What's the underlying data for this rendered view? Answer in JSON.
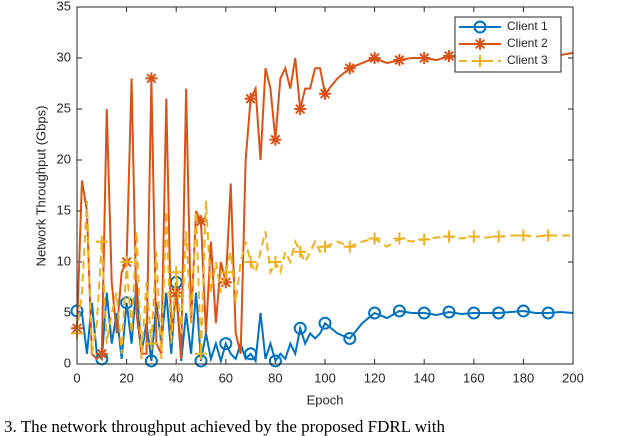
{
  "chart_data": {
    "type": "line",
    "x_label": "Epoch",
    "y_label": "Network Throughput (Gbps)",
    "caption": "3.  The network throughput achieved by the proposed FDRL with",
    "x": [
      0,
      2,
      4,
      6,
      8,
      10,
      12,
      14,
      16,
      18,
      20,
      22,
      24,
      26,
      28,
      30,
      32,
      34,
      36,
      38,
      40,
      42,
      44,
      46,
      48,
      50,
      52,
      54,
      56,
      58,
      60,
      62,
      64,
      66,
      68,
      70,
      72,
      74,
      76,
      78,
      80,
      82,
      84,
      86,
      88,
      90,
      92,
      94,
      96,
      98,
      100,
      105,
      110,
      115,
      120,
      125,
      130,
      135,
      140,
      145,
      150,
      155,
      160,
      165,
      170,
      175,
      180,
      185,
      190,
      195,
      200
    ],
    "series": [
      {
        "name": "Client 1",
        "color": "#0072bd",
        "marker": "circle",
        "dashed": false,
        "values": [
          5.2,
          5,
          1,
          6,
          1,
          0.5,
          7,
          2,
          5,
          0.5,
          6,
          2,
          8,
          1,
          4,
          0.3,
          6,
          2,
          7,
          1,
          8,
          0.3,
          5,
          1,
          7,
          0.3,
          3,
          0.5,
          2,
          0.3,
          2,
          1,
          0.5,
          2,
          0.5,
          1,
          0.3,
          5,
          0.5,
          2,
          0.3,
          1,
          0.5,
          2,
          1,
          3.5,
          2,
          3,
          2.5,
          3,
          4,
          3,
          2.5,
          4,
          5,
          4.5,
          5.2,
          5,
          5,
          4.8,
          5.1,
          4.9,
          5,
          5,
          5,
          5.1,
          5.2,
          5,
          5,
          5.1,
          5
        ]
      },
      {
        "name": "Client 2",
        "color": "#d95319",
        "marker": "star",
        "dashed": false,
        "values": [
          3.5,
          18,
          15,
          1,
          0.5,
          1,
          25,
          8,
          3,
          9,
          10,
          28,
          5,
          1,
          1,
          28,
          2,
          1,
          26,
          3,
          7,
          0.5,
          27,
          4,
          15,
          14,
          3,
          12,
          4,
          10,
          8,
          17.7,
          3,
          1,
          20,
          26,
          27,
          20,
          29,
          27,
          22,
          28,
          29,
          27,
          30,
          25,
          27,
          27,
          29,
          29,
          26.5,
          28,
          29,
          29.5,
          30,
          29.5,
          29.8,
          30,
          30,
          29.8,
          30.2,
          30,
          30.3,
          30,
          30.3,
          30.2,
          30.3,
          30.1,
          30.4,
          30.3,
          30.5
        ]
      },
      {
        "name": "Client 3",
        "color": "#edb120",
        "marker": "plus",
        "dashed": true,
        "values": [
          3,
          7,
          16,
          1,
          4,
          12,
          2,
          5,
          7,
          1,
          10,
          3,
          13,
          0.5,
          8,
          2,
          11,
          0.5,
          15,
          2,
          9,
          3,
          13,
          4,
          15,
          1,
          16,
          7,
          10,
          7,
          9,
          11,
          6,
          10,
          12,
          10,
          9,
          11,
          13,
          9,
          10,
          9,
          11,
          10,
          12,
          11,
          10,
          11,
          12,
          11,
          11.5,
          12,
          11.5,
          12,
          12.3,
          11.5,
          12.3,
          12,
          12.2,
          12.4,
          12.5,
          12.3,
          12.5,
          12.4,
          12.5,
          12.6,
          12.6,
          12.5,
          12.6,
          12.6,
          12.6
        ]
      }
    ],
    "xlim": [
      0,
      200
    ],
    "xticks": [
      0,
      20,
      40,
      60,
      80,
      100,
      120,
      140,
      160,
      180,
      200
    ],
    "ylim": [
      0,
      35
    ],
    "yticks": [
      0,
      5,
      10,
      15,
      20,
      25,
      30,
      35
    ],
    "legend": "top-right"
  }
}
